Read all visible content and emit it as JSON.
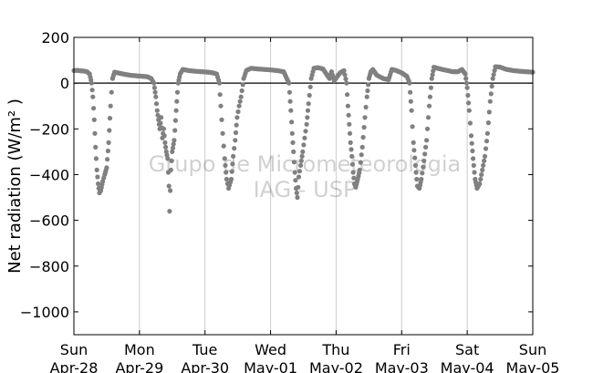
{
  "chart_data": {
    "type": "scatter",
    "title": "",
    "ylabel": "Net radiation (W/m² )",
    "xlabel": "",
    "ylim": [
      -1100,
      200
    ],
    "yticks": [
      200,
      0,
      -200,
      -400,
      -600,
      -800,
      -1000
    ],
    "ytick_labels": [
      "200",
      "0",
      "−200",
      "−400",
      "−600",
      "−800",
      "−1000"
    ],
    "xlim": [
      "2013-04-28T00:00",
      "2013-05-05T00:00"
    ],
    "xticks": [
      {
        "day": "Sun",
        "date": "Apr-28"
      },
      {
        "day": "Mon",
        "date": "Apr-29"
      },
      {
        "day": "Tue",
        "date": "Apr-30"
      },
      {
        "day": "Wed",
        "date": "May-01"
      },
      {
        "day": "Thu",
        "date": "May-02"
      },
      {
        "day": "Fri",
        "date": "May-03"
      },
      {
        "day": "Sat",
        "date": "May-04"
      },
      {
        "day": "Sun",
        "date": "May-05"
      }
    ],
    "grid": "vertical",
    "marker_color": "#808080",
    "zero_line": true,
    "watermark": [
      "Grupo de Micrometeorologia",
      "IAG - USP"
    ],
    "series": [
      {
        "name": "",
        "x_unit": "days since axis start (Apr-28 00:00)",
        "points": [
          [
            0.0,
            55
          ],
          [
            0.05,
            56
          ],
          [
            0.1,
            54
          ],
          [
            0.15,
            53
          ],
          [
            0.2,
            50
          ],
          [
            0.24,
            40
          ],
          [
            0.27,
            0
          ],
          [
            0.29,
            -60
          ],
          [
            0.31,
            -160
          ],
          [
            0.33,
            -280
          ],
          [
            0.35,
            -380
          ],
          [
            0.37,
            -440
          ],
          [
            0.39,
            -480
          ],
          [
            0.41,
            -470
          ],
          [
            0.44,
            -430
          ],
          [
            0.47,
            -400
          ],
          [
            0.5,
            -370
          ],
          [
            0.53,
            -260
          ],
          [
            0.56,
            -100
          ],
          [
            0.59,
            20
          ],
          [
            0.62,
            48
          ],
          [
            0.67,
            45
          ],
          [
            0.75,
            40
          ],
          [
            0.85,
            35
          ],
          [
            0.95,
            32
          ],
          [
            1.05,
            30
          ],
          [
            1.12,
            28
          ],
          [
            1.18,
            20
          ],
          [
            1.22,
            0
          ],
          [
            1.25,
            -60
          ],
          [
            1.27,
            -120
          ],
          [
            1.29,
            -160
          ],
          [
            1.31,
            -200
          ],
          [
            1.33,
            -150
          ],
          [
            1.35,
            -240
          ],
          [
            1.37,
            -200
          ],
          [
            1.39,
            -260
          ],
          [
            1.41,
            -300
          ],
          [
            1.43,
            -330
          ],
          [
            1.45,
            -450
          ],
          [
            1.46,
            -560
          ],
          [
            1.48,
            -380
          ],
          [
            1.5,
            -300
          ],
          [
            1.53,
            -250
          ],
          [
            1.56,
            -120
          ],
          [
            1.59,
            0
          ],
          [
            1.62,
            40
          ],
          [
            1.66,
            60
          ],
          [
            1.75,
            55
          ],
          [
            1.85,
            52
          ],
          [
            1.95,
            50
          ],
          [
            2.05,
            48
          ],
          [
            2.12,
            45
          ],
          [
            2.18,
            40
          ],
          [
            2.22,
            0
          ],
          [
            2.24,
            -100
          ],
          [
            2.27,
            -220
          ],
          [
            2.3,
            -330
          ],
          [
            2.33,
            -420
          ],
          [
            2.36,
            -460
          ],
          [
            2.4,
            -420
          ],
          [
            2.43,
            -320
          ],
          [
            2.46,
            -250
          ],
          [
            2.49,
            -150
          ],
          [
            2.52,
            -100
          ],
          [
            2.55,
            -60
          ],
          [
            2.59,
            20
          ],
          [
            2.63,
            55
          ],
          [
            2.7,
            65
          ],
          [
            2.8,
            62
          ],
          [
            2.9,
            60
          ],
          [
            3.0,
            58
          ],
          [
            3.1,
            55
          ],
          [
            3.2,
            50
          ],
          [
            3.28,
            0
          ],
          [
            3.31,
            -120
          ],
          [
            3.33,
            -220
          ],
          [
            3.35,
            -300
          ],
          [
            3.37,
            -390
          ],
          [
            3.39,
            -460
          ],
          [
            3.41,
            -500
          ],
          [
            3.43,
            -410
          ],
          [
            3.46,
            -360
          ],
          [
            3.49,
            -300
          ],
          [
            3.52,
            -240
          ],
          [
            3.55,
            -180
          ],
          [
            3.58,
            -90
          ],
          [
            3.62,
            20
          ],
          [
            3.66,
            65
          ],
          [
            3.72,
            68
          ],
          [
            3.8,
            62
          ],
          [
            3.85,
            40
          ],
          [
            3.9,
            20
          ],
          [
            3.93,
            50
          ],
          [
            3.97,
            10
          ],
          [
            4.02,
            30
          ],
          [
            4.06,
            45
          ],
          [
            4.12,
            55
          ],
          [
            4.16,
            0
          ],
          [
            4.18,
            -100
          ],
          [
            4.2,
            -180
          ],
          [
            4.22,
            -260
          ],
          [
            4.24,
            -320
          ],
          [
            4.26,
            -390
          ],
          [
            4.28,
            -440
          ],
          [
            4.3,
            -455
          ],
          [
            4.33,
            -420
          ],
          [
            4.36,
            -380
          ],
          [
            4.4,
            -280
          ],
          [
            4.44,
            -150
          ],
          [
            4.47,
            -60
          ],
          [
            4.5,
            20
          ],
          [
            4.53,
            50
          ],
          [
            4.56,
            60
          ],
          [
            4.62,
            35
          ],
          [
            4.72,
            20
          ],
          [
            4.8,
            15
          ],
          [
            4.85,
            60
          ],
          [
            4.92,
            55
          ],
          [
            5.0,
            45
          ],
          [
            5.08,
            30
          ],
          [
            5.12,
            0
          ],
          [
            5.15,
            -120
          ],
          [
            5.18,
            -260
          ],
          [
            5.21,
            -360
          ],
          [
            5.24,
            -450
          ],
          [
            5.27,
            -460
          ],
          [
            5.3,
            -420
          ],
          [
            5.34,
            -340
          ],
          [
            5.38,
            -250
          ],
          [
            5.42,
            -100
          ],
          [
            5.46,
            20
          ],
          [
            5.49,
            70
          ],
          [
            5.55,
            65
          ],
          [
            5.62,
            60
          ],
          [
            5.7,
            55
          ],
          [
            5.78,
            50
          ],
          [
            5.86,
            50
          ],
          [
            5.92,
            60
          ],
          [
            5.97,
            40
          ],
          [
            6.0,
            -20
          ],
          [
            6.03,
            -120
          ],
          [
            6.06,
            -230
          ],
          [
            6.09,
            -330
          ],
          [
            6.12,
            -420
          ],
          [
            6.15,
            -460
          ],
          [
            6.19,
            -440
          ],
          [
            6.23,
            -380
          ],
          [
            6.27,
            -320
          ],
          [
            6.31,
            -220
          ],
          [
            6.35,
            -80
          ],
          [
            6.39,
            20
          ],
          [
            6.43,
            72
          ],
          [
            6.5,
            70
          ],
          [
            6.6,
            60
          ],
          [
            6.7,
            55
          ],
          [
            6.8,
            52
          ],
          [
            6.9,
            50
          ],
          [
            7.0,
            48
          ]
        ]
      }
    ]
  }
}
